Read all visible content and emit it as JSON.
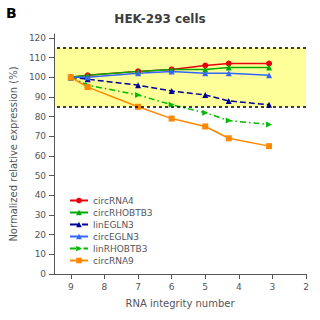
{
  "chart_data": {
    "type": "line",
    "title": "HEK-293 cells",
    "x_label": "RNA integrity number",
    "y_label": "Normalized relative expression (%)",
    "x": [
      9,
      8.5,
      7,
      6,
      5,
      4.3,
      3.1
    ],
    "xlim": [
      9.5,
      2
    ],
    "xticks": [
      9,
      8,
      7,
      6,
      5,
      4,
      3,
      2
    ],
    "ylim": [
      0,
      122
    ],
    "yticks": [
      0,
      10,
      20,
      30,
      40,
      50,
      60,
      70,
      80,
      90,
      100,
      110,
      120
    ],
    "band": {
      "ymin": 85,
      "ymax": 115,
      "color": "#ffff99"
    },
    "hlines": [
      115,
      85
    ],
    "annotations": [
      {
        "text": "B"
      }
    ],
    "legend": "lower left",
    "grid": false,
    "series": [
      {
        "name": "circRNA4",
        "color": "#e8000d",
        "line_style": "solid",
        "marker": "circle",
        "values": [
          100,
          101,
          103,
          104,
          106,
          107,
          107
        ]
      },
      {
        "name": "circRHOBTB3",
        "color": "#00aa00",
        "line_style": "solid",
        "marker": "triangle",
        "values": [
          100,
          101,
          103,
          104,
          104,
          105,
          105
        ]
      },
      {
        "name": "linEGLN3",
        "color": "#000099",
        "line_style": "dashed",
        "marker": "triangle",
        "values": [
          100,
          99,
          96,
          93,
          91,
          88,
          86
        ]
      },
      {
        "name": "circEGLN3",
        "color": "#3366ff",
        "line_style": "solid",
        "marker": "triangle",
        "values": [
          100,
          100,
          102,
          103,
          102,
          102,
          101
        ]
      },
      {
        "name": "linRHOBTB3",
        "color": "#00bb00",
        "line_style": "dashdot",
        "marker": "triangle_right",
        "values": [
          100,
          96,
          91,
          86,
          82,
          78,
          76
        ]
      },
      {
        "name": "circRNA9",
        "color": "#ff8800",
        "line_style": "solid",
        "marker": "square",
        "values": [
          100,
          95,
          85,
          79,
          75,
          69,
          65
        ]
      }
    ]
  }
}
